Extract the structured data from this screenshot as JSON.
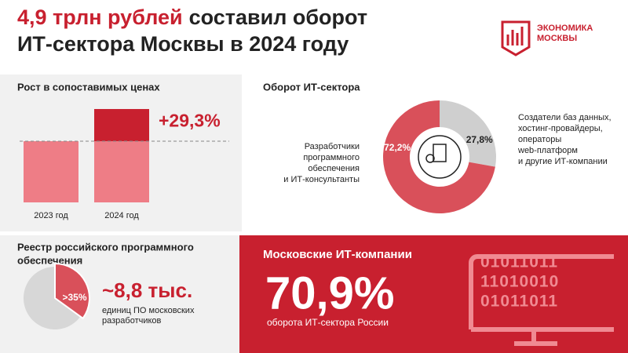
{
  "header": {
    "title_accent": "4,9 трлн рублей",
    "title_rest": "составил оборот",
    "title_line2": "ИТ-сектора Москвы в 2024 году",
    "logo": [
      "ЭКОНОМИКА",
      "МОСКВЫ"
    ]
  },
  "growth": {
    "title": "Рост в сопоставимых ценах",
    "categories": [
      "2023 год",
      "2024 год"
    ],
    "increase": 29.3,
    "increase_label": "+29,3%"
  },
  "turnover": {
    "title": "Оборот ИТ-сектора",
    "values": [
      72.2,
      27.8
    ],
    "value_labels": [
      "72,2%",
      "27,8%"
    ],
    "colors": [
      "#d9505a",
      "#cfcfcf"
    ],
    "names": [
      [
        "Разработчики",
        "программного",
        "обеспечения",
        "и ИТ-консультанты"
      ],
      [
        "Создатели баз данных,",
        "хостинг-провайдеры,",
        "операторы",
        "web-платформ",
        "и другие ИТ-компании"
      ]
    ]
  },
  "registry": {
    "title": [
      "Реестр российского программного",
      "обеспечения"
    ],
    "share": 35,
    "share_label": ">35%",
    "count": "~8,8 тыс.",
    "note": [
      "единиц ПО московских",
      "разработчиков"
    ]
  },
  "moscow": {
    "title": "Московские ИТ-компании",
    "value": "70,9%",
    "note": "оборота ИТ-сектора России",
    "binary": [
      "01011011",
      "11010010",
      "01011011"
    ]
  }
}
